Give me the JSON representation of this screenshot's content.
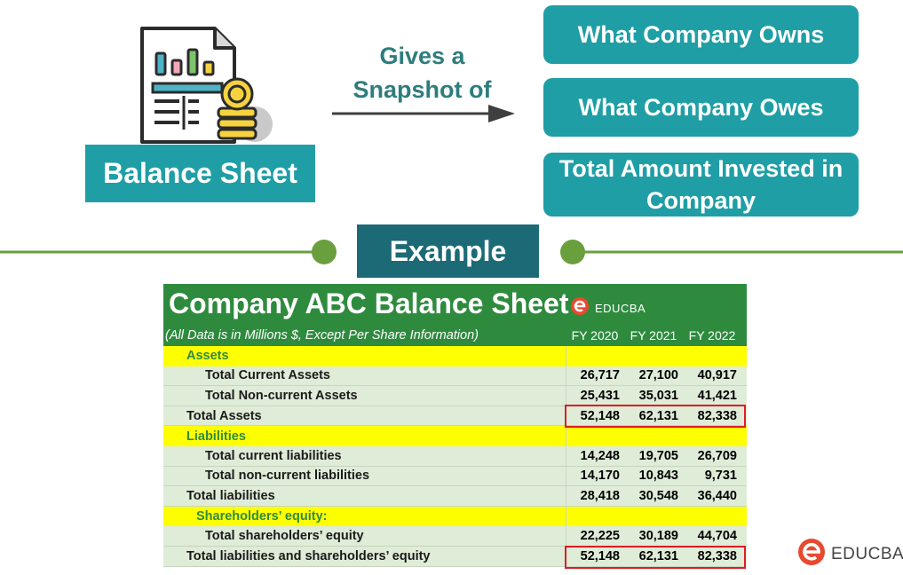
{
  "left": {
    "label": "Balance Sheet"
  },
  "middle": {
    "line1": "Gives a",
    "line2": "Snapshot of"
  },
  "pills": [
    "What Company Owns",
    "What Company Owes",
    "Total Amount Invested in Company"
  ],
  "divider": {
    "label": "Example"
  },
  "table": {
    "title": "Company ABC Balance Sheet",
    "logo_text": "EDUCBA",
    "note": "(All Data is in Millions $, Except Per Share Information)",
    "years": [
      "FY 2020",
      "FY 2021",
      "FY 2022"
    ],
    "rows": [
      {
        "label": "Assets",
        "values": [
          "",
          "",
          ""
        ]
      },
      {
        "label": "Total Current Assets",
        "values": [
          "26,717",
          "27,100",
          "40,917"
        ]
      },
      {
        "label": "Total Non-current Assets",
        "values": [
          "25,431",
          "35,031",
          "41,421"
        ]
      },
      {
        "label": "Total Assets",
        "values": [
          "52,148",
          "62,131",
          "82,338"
        ]
      },
      {
        "label": "Liabilities",
        "values": [
          "",
          "",
          ""
        ]
      },
      {
        "label": "Total current liabilities",
        "values": [
          "14,248",
          "19,705",
          "26,709"
        ]
      },
      {
        "label": "Total non-current liabilities",
        "values": [
          "14,170",
          "10,843",
          "9,731"
        ]
      },
      {
        "label": "Total liabilities",
        "values": [
          "28,418",
          "30,548",
          "36,440"
        ]
      },
      {
        "label": "Shareholders’ equity:",
        "values": [
          "",
          "",
          ""
        ]
      },
      {
        "label": "Total shareholders’ equity",
        "values": [
          "22,225",
          "30,189",
          "44,704"
        ]
      },
      {
        "label": "Total liabilities and shareholders’ equity",
        "values": [
          "52,148",
          "62,131",
          "82,338"
        ]
      }
    ]
  },
  "footer": {
    "brand": "EDUCBA"
  },
  "colors": {
    "teal": "#1f9ea5",
    "dark_teal": "#1c6a75",
    "green": "#2e8b3e",
    "highlight": "#ffff00",
    "red": "#e01b24",
    "divider_green": "#6a9f3d"
  }
}
